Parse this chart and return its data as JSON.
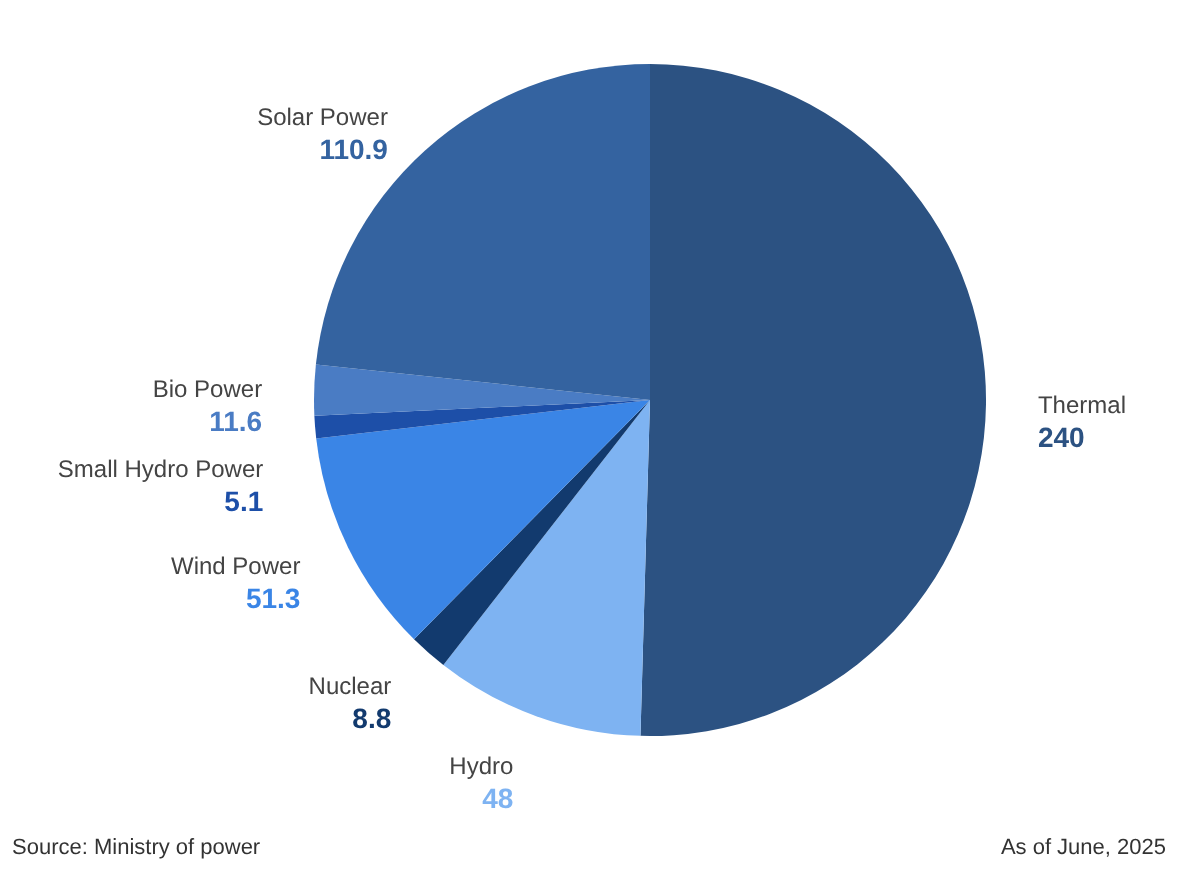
{
  "chart_data": {
    "type": "pie",
    "categories": [
      "Thermal",
      "Hydro",
      "Nuclear",
      "Wind Power",
      "Small Hydro Power",
      "Bio Power",
      "Solar Power"
    ],
    "values": [
      240,
      48,
      8.8,
      51.3,
      5.1,
      11.6,
      110.9
    ],
    "colors": [
      "#2c5282",
      "#7eb3f2",
      "#123a6e",
      "#3a85e6",
      "#1d4fa8",
      "#4a7cc4",
      "#3463a0"
    ],
    "data_labels": true,
    "annotations": [
      "Source: Ministry of power",
      "As of June, 2025"
    ]
  }
}
